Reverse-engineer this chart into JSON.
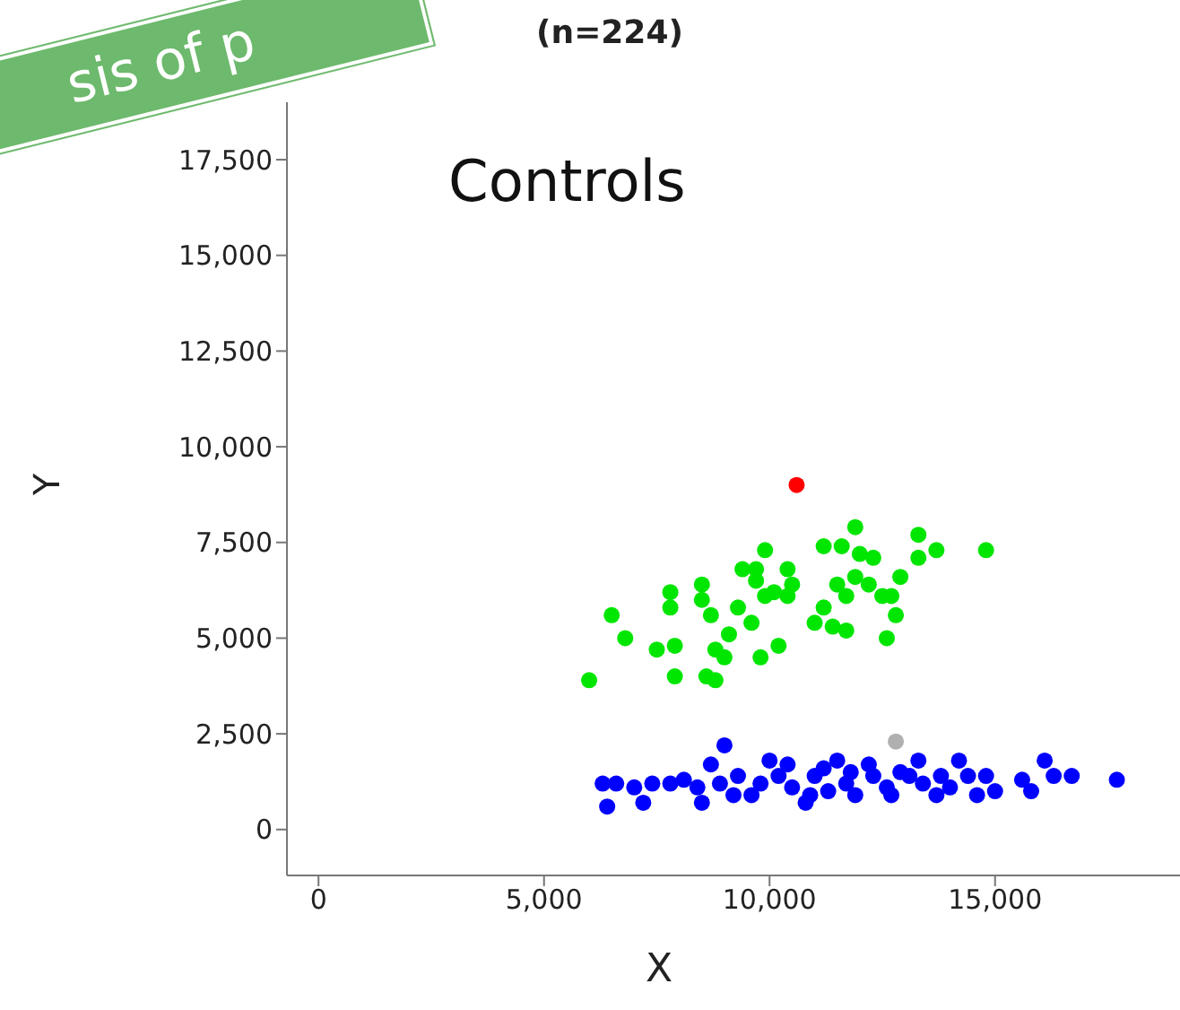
{
  "chart_data": {
    "type": "scatter",
    "title": "(n=224)",
    "xlabel": "X",
    "ylabel": "Y",
    "annotations": [
      "Controls",
      "sis of p"
    ],
    "xlim": [
      -700,
      19100
    ],
    "ylim": [
      -1200,
      19000
    ],
    "xticks": [
      {
        "value": 0,
        "label": "0"
      },
      {
        "value": 5000,
        "label": "5,000"
      },
      {
        "value": 10000,
        "label": "10,000"
      },
      {
        "value": 15000,
        "label": "15,000"
      }
    ],
    "yticks": [
      {
        "value": 0,
        "label": "0"
      },
      {
        "value": 2500,
        "label": "2,500"
      },
      {
        "value": 5000,
        "label": "5,000"
      },
      {
        "value": 7500,
        "label": "7,500"
      },
      {
        "value": 10000,
        "label": "10,000"
      },
      {
        "value": 12500,
        "label": "12,500"
      },
      {
        "value": 15000,
        "label": "15,000"
      },
      {
        "value": 17500,
        "label": "17,500"
      }
    ],
    "grid": false,
    "legend": false,
    "marker": "circle",
    "series": [
      {
        "color": "#0000ff",
        "x": [
          6300,
          6400,
          6600,
          7000,
          7200,
          7400,
          7800,
          8100,
          8500,
          8700,
          9000,
          8900,
          9300,
          9600,
          10000,
          9800,
          10400,
          10500,
          10800,
          11000,
          11200,
          11500,
          11700,
          11900,
          12200,
          12300,
          12600,
          12900,
          13300,
          13400,
          13700,
          13800,
          14200,
          14400,
          14600,
          14800,
          15000,
          15600,
          15800,
          16100,
          16300,
          16700,
          17700,
          11300,
          12700,
          14000,
          10900,
          10200,
          9200,
          8400,
          11800,
          13100
        ],
        "values": [
          1200,
          600,
          1200,
          1100,
          700,
          1200,
          1200,
          1300,
          700,
          1700,
          2200,
          1200,
          1400,
          900,
          1800,
          1200,
          1700,
          1100,
          700,
          1400,
          1600,
          1800,
          1200,
          900,
          1700,
          1400,
          1100,
          1500,
          1800,
          1200,
          900,
          1400,
          1800,
          1400,
          900,
          1400,
          1000,
          1300,
          1000,
          1800,
          1400,
          1400,
          1300,
          1000,
          900,
          1100,
          900,
          1400,
          900,
          1100,
          1500,
          1400
        ]
      },
      {
        "color": "#00e600",
        "x": [
          6000,
          6500,
          6800,
          7500,
          7900,
          7800,
          7800,
          7900,
          8500,
          8500,
          8700,
          8600,
          8800,
          8800,
          9100,
          9000,
          9300,
          9400,
          9700,
          9900,
          9700,
          9900,
          9600,
          9800,
          10200,
          10400,
          10500,
          10400,
          10100,
          11200,
          11000,
          11200,
          11400,
          11700,
          11500,
          11700,
          11600,
          11900,
          12000,
          12300,
          11900,
          12200,
          12500,
          12700,
          12900,
          12600,
          12800,
          13300,
          13300,
          13700,
          14800
        ],
        "values": [
          3900,
          5600,
          5000,
          4700,
          4800,
          6200,
          5800,
          4000,
          6400,
          6000,
          5600,
          4000,
          3900,
          4700,
          5100,
          4500,
          5800,
          6800,
          6800,
          7300,
          6500,
          6100,
          5400,
          4500,
          4800,
          6800,
          6400,
          6100,
          6200,
          7400,
          5400,
          5800,
          5300,
          5200,
          6400,
          6100,
          7400,
          7900,
          7200,
          7100,
          6600,
          6400,
          6100,
          6100,
          6600,
          5000,
          5600,
          7700,
          7100,
          7300,
          7300
        ]
      },
      {
        "color": "#ff0000",
        "x": [
          10600
        ],
        "values": [
          9000
        ]
      },
      {
        "color": "#b0b0b0",
        "x": [
          12800
        ],
        "values": [
          2300
        ]
      }
    ]
  }
}
